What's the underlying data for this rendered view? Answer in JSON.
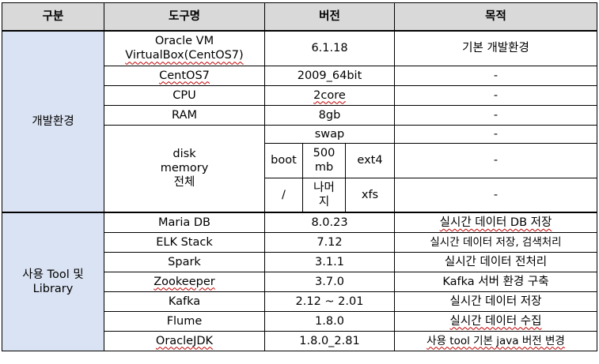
{
  "table": {
    "headers": {
      "category": "구분",
      "tool": "도구명",
      "version": "버전",
      "purpose": "목적"
    },
    "dev": {
      "category": "개발환경",
      "rows": [
        {
          "tool_line1": "Oracle  VM",
          "tool_line2": "VirtualBox(CentOS7)",
          "version": "6.1.18",
          "purpose": "기본  개발환경"
        },
        {
          "tool": "CentOS7",
          "version": "2009_64bit",
          "purpose": "-"
        },
        {
          "tool": "CPU",
          "version": "2core",
          "purpose": "-"
        },
        {
          "tool": "RAM",
          "version": "8gb",
          "purpose": "-"
        }
      ],
      "disk": {
        "tool_line1": "disk",
        "tool_line2": "memory",
        "tool_line3": "전체",
        "swap": {
          "version": "swap",
          "purpose": "-"
        },
        "boot": {
          "mount": "boot",
          "size_line1": "500",
          "size_line2": "mb",
          "fs": "ext4",
          "purpose": "-"
        },
        "root": {
          "mount": "/",
          "size_line1": "나머",
          "size_line2": "지",
          "fs": "xfs",
          "purpose": "-"
        }
      }
    },
    "lib": {
      "category_line1": "사용  Tool  및",
      "category_line2": "Library",
      "rows": [
        {
          "tool": "Maria  DB",
          "version": "8.0.23",
          "purpose": "실시간  데이터  DB 저장"
        },
        {
          "tool": "ELK  Stack",
          "version": "7.12",
          "purpose": "실시간  데이터  저장,  검색처리"
        },
        {
          "tool": "Spark",
          "version": "3.1.1",
          "purpose": "실시간  데이터  전처리"
        },
        {
          "tool": "Zookeeper",
          "version": "3.7.0",
          "purpose": "Kafka  서버  환경  구축"
        },
        {
          "tool": "Kafka",
          "version": "2.12  ~  2.01",
          "purpose": "실시간  데이터  저장"
        },
        {
          "tool": "Flume",
          "version": "1.8.0",
          "purpose": "실시간  데이터  수집"
        },
        {
          "tool": "OracleJDK",
          "version": "1.8.0_2.81",
          "purpose": "사용  tool  기본  java  버전  변경"
        }
      ]
    }
  }
}
